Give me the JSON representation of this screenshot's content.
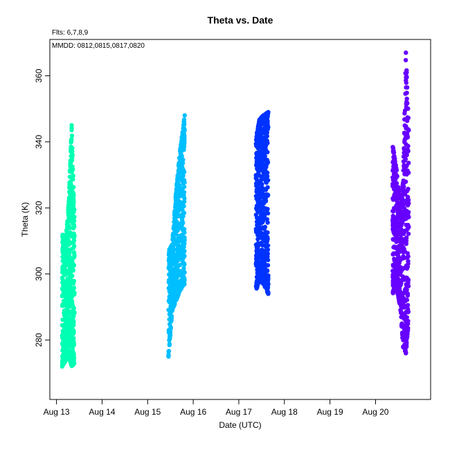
{
  "chart_data": {
    "type": "scatter",
    "title": "Theta  vs. Date",
    "annotations": [
      "Flts: 6,7,8,9",
      "MMDD: 0812,0815,0817,0820"
    ],
    "xlabel": "Date (UTC)",
    "ylabel": "Theta (K)",
    "x_ticks": [
      "Aug 13",
      "Aug 14",
      "Aug 15",
      "Aug 16",
      "Aug 17",
      "Aug 18",
      "Aug 19",
      "Aug 20"
    ],
    "y_ticks": [
      280,
      300,
      320,
      340,
      360
    ],
    "xlim": [
      "2015-08-12T20:30",
      "2015-08-21T05:00"
    ],
    "ylim": [
      262,
      371
    ],
    "grid": false,
    "legend": "none",
    "series": [
      {
        "color": "#00ffb2",
        "x_range": [
          "2015-08-13T03:00",
          "2015-08-13T09:30"
        ],
        "theta_range": [
          272,
          345
        ],
        "profile": [
          {
            "x": "2015-08-13T03:00",
            "theta_min": 272,
            "theta_max": 312
          },
          {
            "x": "2015-08-13T05:00",
            "theta_min": 274,
            "theta_max": 311
          },
          {
            "x": "2015-08-13T06:30",
            "theta_min": 275,
            "theta_max": 322
          },
          {
            "x": "2015-08-13T08:00",
            "theta_min": 272,
            "theta_max": 345
          },
          {
            "x": "2015-08-13T09:30",
            "theta_min": 273,
            "theta_max": 316
          }
        ]
      },
      {
        "color": "#00bfff",
        "x_range": [
          "2015-08-15T11:00",
          "2015-08-15T19:30"
        ],
        "theta_range": [
          275,
          348
        ],
        "profile": [
          {
            "x": "2015-08-15T11:00",
            "theta_min": 275,
            "theta_max": 307
          },
          {
            "x": "2015-08-15T13:00",
            "theta_min": 289,
            "theta_max": 309
          },
          {
            "x": "2015-08-15T15:00",
            "theta_min": 292,
            "theta_max": 325
          },
          {
            "x": "2015-08-15T17:00",
            "theta_min": 295,
            "theta_max": 337
          },
          {
            "x": "2015-08-15T19:30",
            "theta_min": 297,
            "theta_max": 348
          }
        ]
      },
      {
        "color": "#0033ff",
        "x_range": [
          "2015-08-17T09:00",
          "2015-08-17T15:30"
        ],
        "theta_range": [
          294,
          349
        ],
        "profile": [
          {
            "x": "2015-08-17T09:00",
            "theta_min": 295,
            "theta_max": 341
          },
          {
            "x": "2015-08-17T11:00",
            "theta_min": 298,
            "theta_max": 347
          },
          {
            "x": "2015-08-17T13:00",
            "theta_min": 297,
            "theta_max": 348
          },
          {
            "x": "2015-08-17T15:30",
            "theta_min": 294,
            "theta_max": 349
          }
        ]
      },
      {
        "color": "#6600ff",
        "x_range": [
          "2015-08-20T09:00",
          "2015-08-20T17:30"
        ],
        "theta_range": [
          276,
          367
        ],
        "profile": [
          {
            "x": "2015-08-20T09:00",
            "theta_min": 294,
            "theta_max": 339
          },
          {
            "x": "2015-08-20T11:00",
            "theta_min": 296,
            "theta_max": 332
          },
          {
            "x": "2015-08-20T13:00",
            "theta_min": 290,
            "theta_max": 320
          },
          {
            "x": "2015-08-20T14:30",
            "theta_min": 278,
            "theta_max": 328
          },
          {
            "x": "2015-08-20T16:00",
            "theta_min": 276,
            "theta_max": 367
          },
          {
            "x": "2015-08-20T17:30",
            "theta_min": 286,
            "theta_max": 344
          }
        ]
      }
    ]
  }
}
